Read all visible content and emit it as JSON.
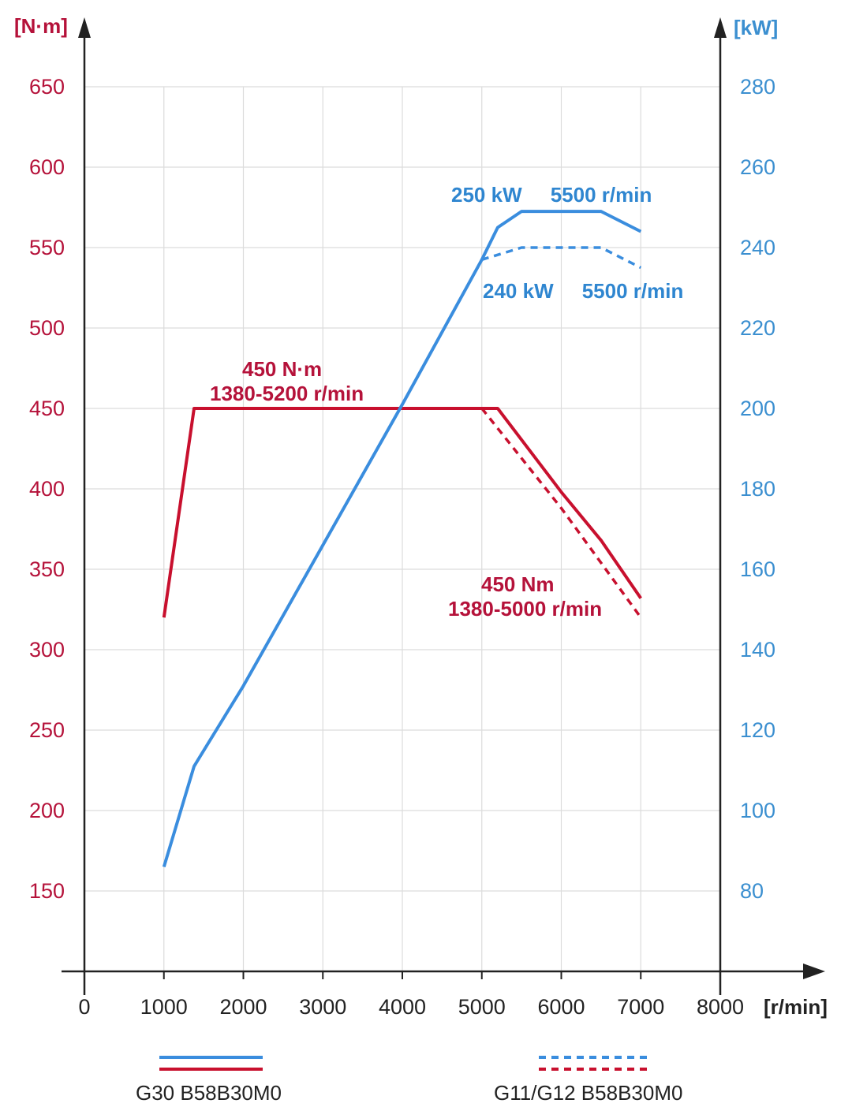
{
  "colors": {
    "torque": "#c8102e",
    "power": "#3a8dde",
    "torque_tick": "#b5123a",
    "power_tick": "#3b8fd0",
    "axis": "#222222",
    "grid": "#dcdcdc"
  },
  "chart_data": {
    "type": "line",
    "x_unit": "[r/min]",
    "y_left_unit": "[N·m]",
    "y_right_unit": "[kW]",
    "x_ticks": [
      0,
      1000,
      2000,
      3000,
      4000,
      5000,
      6000,
      7000,
      8000
    ],
    "y_left_ticks": [
      150,
      200,
      250,
      300,
      350,
      400,
      450,
      500,
      550,
      600,
      650
    ],
    "y_right_ticks": [
      80,
      100,
      120,
      140,
      160,
      180,
      200,
      220,
      240,
      260,
      280
    ],
    "xlim": [
      0,
      8000
    ],
    "y_left_lim": [
      100,
      650
    ],
    "y_right_lim": [
      60,
      280
    ],
    "grid": true,
    "series": [
      {
        "name": "G30 B58B30M0",
        "quantity": "torque",
        "axis": "left",
        "style": "solid",
        "x": [
          1000,
          1380,
          5200,
          6000,
          6500,
          7000
        ],
        "y": [
          320,
          450,
          450,
          398,
          368,
          332
        ]
      },
      {
        "name": "G30 B58B30M0",
        "quantity": "power",
        "axis": "right",
        "style": "solid",
        "x": [
          1000,
          1380,
          2000,
          3000,
          4000,
          5000,
          5200,
          5500,
          6500,
          7000
        ],
        "y": [
          86,
          111,
          131,
          166,
          201,
          237,
          245,
          249,
          249,
          244
        ]
      },
      {
        "name": "G11/G12 B58B30M0",
        "quantity": "torque",
        "axis": "left",
        "style": "dashed",
        "x": [
          5000,
          6000,
          7000
        ],
        "y": [
          450,
          388,
          320
        ]
      },
      {
        "name": "G11/G12 B58B30M0",
        "quantity": "power",
        "axis": "right",
        "style": "dashed",
        "x": [
          5000,
          5500,
          6500,
          7000
        ],
        "y": [
          237,
          240,
          240,
          235
        ]
      }
    ],
    "annotations": [
      {
        "id": "g30_torque_a",
        "text": "450 N·m",
        "color": "torque"
      },
      {
        "id": "g30_torque_b",
        "text": "1380-5200 r/min",
        "color": "torque"
      },
      {
        "id": "g11_torque_a",
        "text": "450 Nm",
        "color": "torque"
      },
      {
        "id": "g11_torque_b",
        "text": "1380-5000 r/min",
        "color": "torque"
      },
      {
        "id": "g30_power",
        "text": "250 kW     5500 r/min",
        "color": "power"
      },
      {
        "id": "g11_power",
        "text": "240 kW     5500 r/min",
        "color": "power"
      }
    ],
    "legend": [
      {
        "label": "G30 B58B30M0",
        "style": "solid"
      },
      {
        "label": "G11/G12 B58B30M0",
        "style": "dashed"
      }
    ]
  }
}
